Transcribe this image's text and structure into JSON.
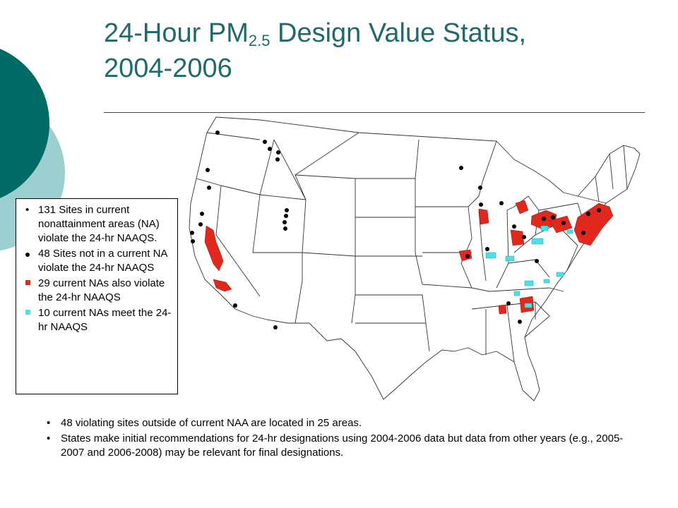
{
  "slide": {
    "title_prefix": "24-Hour PM",
    "title_subscript": "2.5",
    "title_suffix": " Design Value Status,",
    "title_line2": "2004-2006",
    "colors": {
      "title": "#1f6b6b",
      "circle_dark": "#006a66",
      "circle_light": "#9ccfd0",
      "nonattainment_violating": "#e0281c",
      "nonattainment_meeting": "#4ee0e8",
      "site": "#000000"
    }
  },
  "legend": {
    "items": [
      {
        "marker": "bullet",
        "text": "131 Sites in current nonattainment areas (NA) violate the 24-hr NAAQS."
      },
      {
        "marker": "black-dot",
        "text": "48 Sites not in a current NA violate the 24-hr NAAQS"
      },
      {
        "marker": "red-square",
        "text": "29 current NAs also violate the 24-hr NAAQS"
      },
      {
        "marker": "cyan-square",
        "text": "10 current NAs meet the  24-hr NAAQS"
      }
    ]
  },
  "notes": [
    {
      "bullet": "•",
      "text": "48 violating sites outside of current NAA are located in 25 areas."
    },
    {
      "bullet": "•",
      "text": "States make initial recommendations for 24-hr designations using 2004-2006 data but data from other years (e.g., 2005-2007 and 2006-2008) may be relevant for final designations."
    }
  ]
}
